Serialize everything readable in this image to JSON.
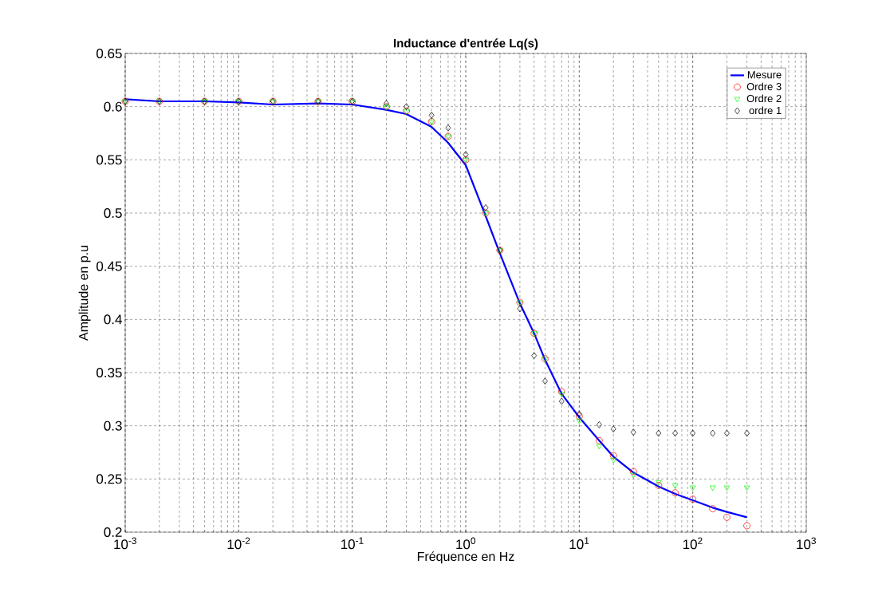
{
  "chart_data": {
    "type": "line",
    "title": "Inductance d'entrée Lq(s)",
    "xlabel": "Fréquence en Hz",
    "ylabel": "Amplitude en p.u",
    "log": "x",
    "grid": true,
    "legend": "top right",
    "xlim": [
      0.001,
      1000
    ],
    "ylim": [
      0.2,
      0.65
    ],
    "xticks": [
      {
        "value": 0.001,
        "label": "10$^{-3}$"
      },
      {
        "value": 0.01,
        "label": "10$^{-2}$"
      },
      {
        "value": 0.1,
        "label": "10$^{-1}$"
      },
      {
        "value": 1,
        "label": "10$^{0}$"
      },
      {
        "value": 10,
        "label": "10$^{1}$"
      },
      {
        "value": 100,
        "label": "10$^{2}$"
      },
      {
        "value": 1000,
        "label": "10$^{3}$"
      }
    ],
    "yticks": [
      0.2,
      0.25,
      0.3,
      0.35,
      0.4,
      0.45,
      0.5,
      0.55,
      0.6,
      0.65
    ],
    "x": [
      0.001,
      0.002,
      0.005,
      0.01,
      0.02,
      0.05,
      0.1,
      0.2,
      0.3,
      0.5,
      0.7,
      1,
      1.5,
      2,
      3,
      4,
      5,
      7,
      10,
      15,
      20,
      30,
      50,
      70,
      100,
      150,
      200,
      300
    ],
    "series": [
      {
        "name": "Mesure",
        "color": "#0000ff",
        "marker": "none",
        "line_style": "solid",
        "values": [
          0.607,
          0.605,
          0.605,
          0.604,
          0.602,
          0.603,
          0.602,
          0.597,
          0.593,
          0.581,
          0.566,
          0.545,
          0.497,
          0.462,
          0.415,
          0.387,
          0.362,
          0.33,
          0.308,
          0.286,
          0.271,
          0.256,
          0.243,
          0.236,
          0.23,
          0.223,
          0.219,
          0.214
        ]
      },
      {
        "name": "Ordre 3",
        "color": "#ff0000",
        "type": "scatter",
        "marker": "circle",
        "values": [
          0.605,
          0.605,
          0.605,
          0.605,
          0.605,
          0.605,
          0.605,
          0.6,
          0.596,
          0.586,
          0.572,
          0.55,
          0.5,
          0.465,
          0.416,
          0.387,
          0.363,
          0.332,
          0.309,
          0.286,
          0.272,
          0.257,
          0.244,
          0.237,
          0.231,
          0.222,
          0.214,
          0.206
        ]
      },
      {
        "name": "Ordre 2",
        "color": "#00ff00",
        "type": "scatter",
        "marker": "triangle",
        "values": [
          0.605,
          0.605,
          0.605,
          0.605,
          0.605,
          0.605,
          0.605,
          0.6,
          0.596,
          0.586,
          0.572,
          0.55,
          0.5,
          0.465,
          0.416,
          0.387,
          0.363,
          0.33,
          0.305,
          0.281,
          0.268,
          0.254,
          0.247,
          0.244,
          0.242,
          0.242,
          0.242,
          0.242
        ]
      },
      {
        "name": "ordre 1",
        "color": "#000000",
        "type": "scatter",
        "marker": "diamond",
        "values": [
          0.605,
          0.605,
          0.605,
          0.605,
          0.605,
          0.605,
          0.605,
          0.603,
          0.6,
          0.592,
          0.58,
          0.555,
          0.505,
          0.465,
          0.41,
          0.366,
          0.342,
          0.323,
          0.311,
          0.301,
          0.297,
          0.294,
          0.293,
          0.293,
          0.293,
          0.293,
          0.293,
          0.293
        ]
      }
    ]
  }
}
